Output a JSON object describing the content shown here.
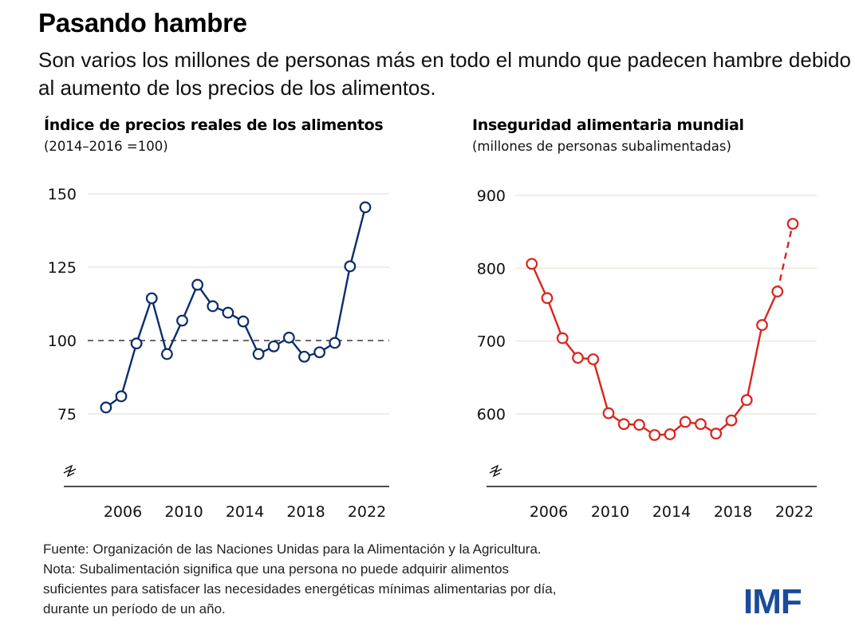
{
  "header": {
    "title": "Pasando hambre",
    "subtitle": "Son varios los millones de personas más en todo el mundo que padecen hambre debido al aumento de los precios de los alimentos."
  },
  "colors": {
    "left_series": "#0c2d6b",
    "right_series": "#d7261e",
    "gridline": "#ebe7df",
    "logo": "#1b4b9a"
  },
  "chart_data": [
    {
      "type": "line",
      "title": "Índice de precios reales de los alimentos",
      "subtitle": "(2014–2016 =100)",
      "x": [
        2005,
        2006,
        2007,
        2008,
        2009,
        2010,
        2011,
        2012,
        2013,
        2014,
        2015,
        2016,
        2017,
        2018,
        2019,
        2020,
        2021,
        2022
      ],
      "series": [
        {
          "name": "Índice de precios reales de los alimentos",
          "values": [
            77.2,
            81.0,
            99.0,
            114.4,
            95.4,
            106.8,
            119.0,
            111.7,
            109.5,
            106.5,
            95.4,
            98.0,
            101.0,
            94.5,
            96.0,
            99.2,
            125.3,
            145.4
          ]
        }
      ],
      "xticks": [
        "2006",
        "2010",
        "2014",
        "2018",
        "2022"
      ],
      "yticks": [
        "75",
        "100",
        "125",
        "150"
      ],
      "ylim": [
        60,
        155
      ],
      "reference_line": 100,
      "axis_break": true,
      "grid": true
    },
    {
      "type": "line",
      "title": "Inseguridad alimentaria mundial",
      "subtitle": "(millones de personas subalimentadas)",
      "x": [
        2005,
        2006,
        2007,
        2008,
        2009,
        2010,
        2011,
        2012,
        2013,
        2014,
        2015,
        2016,
        2017,
        2018,
        2019,
        2020,
        2021,
        2022
      ],
      "series": [
        {
          "name": "Personas subalimentadas (millones)",
          "values": [
            806,
            759,
            704,
            677,
            675,
            601,
            586,
            585,
            571,
            572,
            589,
            586,
            573,
            591,
            619,
            722,
            768,
            861
          ],
          "dashed_from": 2021
        }
      ],
      "xticks": [
        "2006",
        "2010",
        "2014",
        "2018",
        "2022"
      ],
      "yticks": [
        "600",
        "700",
        "800",
        "900"
      ],
      "ylim": [
        500,
        910
      ],
      "axis_break": true,
      "grid": true
    }
  ],
  "footer": {
    "source": "Fuente: Organización de las Naciones Unidas para la Alimentación y la Agricultura.",
    "note_line1": "Nota: Subalimentación significa que una persona no puede adquirir alimentos",
    "note_line2": "suficientes para satisfacer las necesidades energéticas mínimas alimentarias por día,",
    "note_line3": "durante un período de un año."
  },
  "logo": {
    "text": "IMF"
  }
}
